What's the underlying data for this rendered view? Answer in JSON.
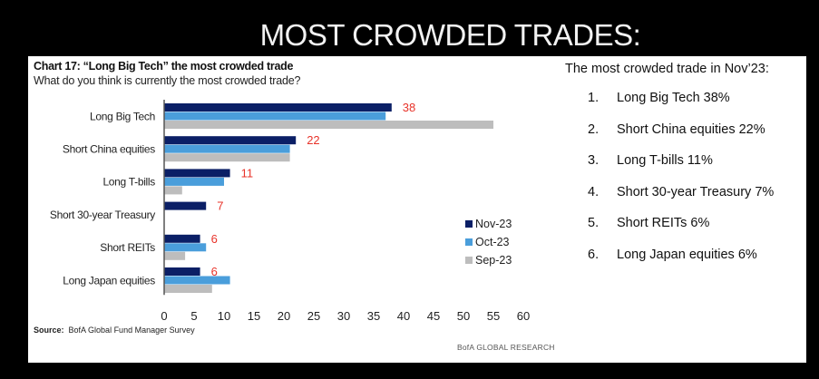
{
  "headline": "MOST CROWDED TRADES:",
  "chart_title": "Chart 17: “Long Big Tech” the most crowded trade",
  "chart_subtitle": "What do you think is currently the most crowded trade?",
  "source_label": "Source:",
  "source_text": "BofA Global Fund Manager Survey",
  "brand": "BofA GLOBAL RESEARCH",
  "side_panel": {
    "title": "The most crowded trade in Nov’23:",
    "items": [
      {
        "num": "1.",
        "text": "Long Big Tech 38%"
      },
      {
        "num": "2.",
        "text": "Short China equities 22%"
      },
      {
        "num": "3.",
        "text": "Long T-bills 11%"
      },
      {
        "num": "4.",
        "text": "Short 30-year Treasury 7%"
      },
      {
        "num": "5.",
        "text": "Short REITs 6%"
      },
      {
        "num": "6.",
        "text": "Long Japan equities 6%"
      }
    ]
  },
  "chart_data": {
    "type": "bar",
    "orientation": "horizontal",
    "title": "Chart 17: “Long Big Tech” the most crowded trade",
    "subtitle": "What do you think is currently the most crowded trade?",
    "xlabel": "",
    "ylabel": "",
    "xlim": [
      0,
      60
    ],
    "xticks": [
      0,
      5,
      10,
      15,
      20,
      25,
      30,
      35,
      40,
      45,
      50,
      55,
      60
    ],
    "grid": false,
    "legend_position": "bottom-right",
    "categories": [
      "Long Big Tech",
      "Short China equities",
      "Long T-bills",
      "Short 30-year Treasury",
      "Short REITs",
      "Long Japan equities"
    ],
    "series": [
      {
        "name": "Nov-23",
        "color": "#0b1f66",
        "values": [
          38,
          22,
          11,
          7,
          6,
          6
        ]
      },
      {
        "name": "Oct-23",
        "color": "#4a9edb",
        "values": [
          37,
          21,
          10,
          0,
          7,
          11
        ]
      },
      {
        "name": "Sep-23",
        "color": "#bdbdbd",
        "values": [
          55,
          21,
          3,
          0,
          3.5,
          8
        ]
      }
    ],
    "data_labels": {
      "series": "Nov-23",
      "color": "#e8332a",
      "values": [
        "38",
        "22",
        "11",
        "7",
        "6",
        "6"
      ]
    }
  }
}
